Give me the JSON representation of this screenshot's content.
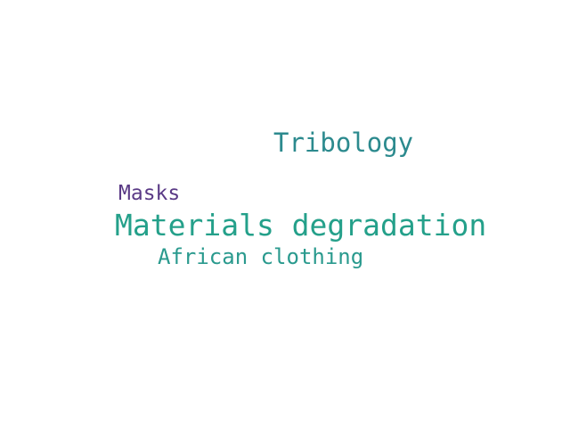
{
  "word_cloud": {
    "words": [
      {
        "text": "Tribology",
        "color": "#2c8a8e"
      },
      {
        "text": "Masks",
        "color": "#5a3a86"
      },
      {
        "text": "Materials degradation",
        "color": "#24a08a"
      },
      {
        "text": "African clothing",
        "color": "#2a9a8e"
      }
    ]
  }
}
